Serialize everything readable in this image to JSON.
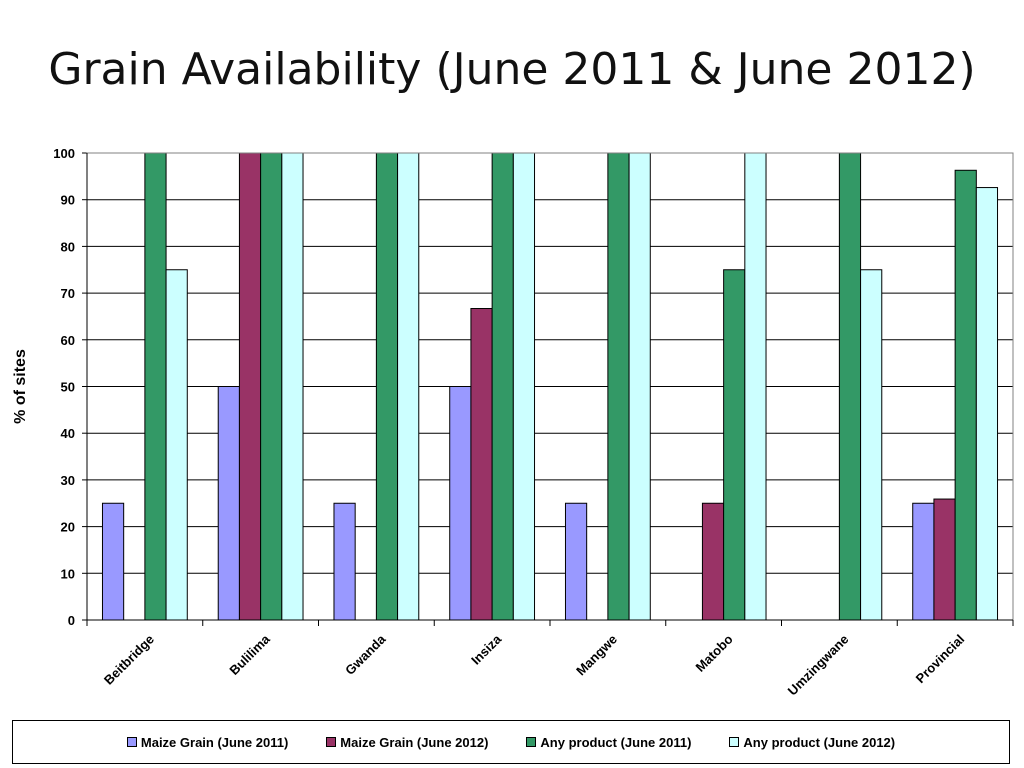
{
  "page": {
    "title": "Grain Availability (June 2011 & June 2012)"
  },
  "chart_data": {
    "type": "bar",
    "title": "Grain Availability (June 2011 & June 2012)",
    "xlabel": "",
    "ylabel": "% of sites",
    "ylim": [
      0,
      100
    ],
    "yticks": [
      0,
      10,
      20,
      30,
      40,
      50,
      60,
      70,
      80,
      90,
      100
    ],
    "grid": true,
    "legend_position": "bottom",
    "categories": [
      "Beitbridge",
      "Bulilima",
      "Gwanda",
      "Insiza",
      "Mangwe",
      "Matobo",
      "Umzingwane",
      "Provincial"
    ],
    "series": [
      {
        "name": "Maize Grain (June 2011)",
        "color": "#9999ff",
        "values": [
          25,
          50,
          25,
          50,
          25,
          0,
          0,
          25
        ]
      },
      {
        "name": "Maize Grain (June 2012)",
        "color": "#993366",
        "values": [
          0,
          100,
          0,
          66.7,
          0,
          25,
          0,
          25.9
        ]
      },
      {
        "name": "Any product (June 2011)",
        "color": "#339966",
        "values": [
          100,
          100,
          100,
          100,
          100,
          75,
          100,
          96.3
        ]
      },
      {
        "name": "Any product (June 2012)",
        "color": "#ccffff",
        "values": [
          75,
          100,
          100,
          100,
          100,
          100,
          75,
          92.6
        ]
      }
    ]
  }
}
